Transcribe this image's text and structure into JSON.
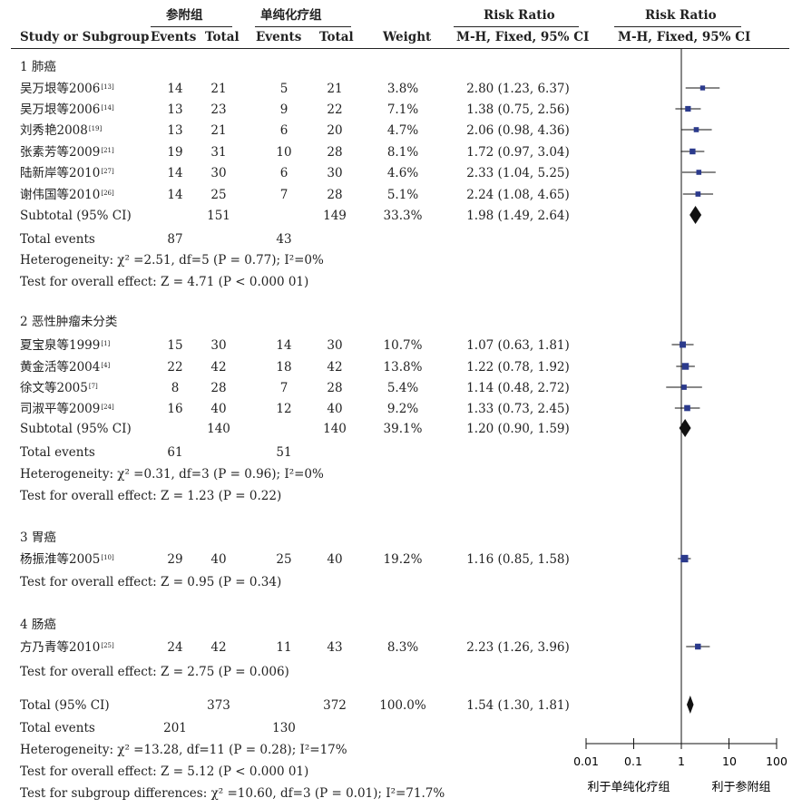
{
  "header": {
    "group1": "参附组",
    "group2": "单纯化疗组",
    "rr_title": "Risk Ratio",
    "plot_title": "Risk Ratio",
    "study_col": "Study or Subgroup",
    "events": "Events",
    "total": "Total",
    "weight": "Weight",
    "method": "M-H, Fixed, 95% CI",
    "plot_method": "M-H, Fixed, 95% CI"
  },
  "subgroups": [
    {
      "title": "1 肺癌",
      "studies": [
        {
          "name": "吴万垠等2006",
          "ref": "[13]",
          "e1": "14",
          "t1": "21",
          "e2": "5",
          "t2": "21",
          "weight": "3.8%",
          "ci": "2.80 (1.23, 6.37)"
        },
        {
          "name": "吴万垠等2006",
          "ref": "[14]",
          "e1": "13",
          "t1": "23",
          "e2": "9",
          "t2": "22",
          "weight": "7.1%",
          "ci": "1.38 (0.75, 2.56)"
        },
        {
          "name": "刘秀艳2008",
          "ref": "[19]",
          "e1": "13",
          "t1": "21",
          "e2": "6",
          "t2": "20",
          "weight": "4.7%",
          "ci": "2.06 (0.98, 4.36)"
        },
        {
          "name": "张素芳等2009",
          "ref": "[21]",
          "e1": "19",
          "t1": "31",
          "e2": "10",
          "t2": "28",
          "weight": "8.1%",
          "ci": "1.72 (0.97, 3.04)"
        },
        {
          "name": "陆新岸等2010",
          "ref": "[27]",
          "e1": "14",
          "t1": "30",
          "e2": "6",
          "t2": "30",
          "weight": "4.6%",
          "ci": "2.33 (1.04, 5.25)"
        },
        {
          "name": "谢伟国等2010",
          "ref": "[26]",
          "e1": "14",
          "t1": "25",
          "e2": "7",
          "t2": "28",
          "weight": "5.1%",
          "ci": "2.24 (1.08, 4.65)"
        }
      ],
      "subtotal": {
        "label": "Subtotal (95% CI)",
        "t1": "151",
        "t2": "149",
        "weight": "33.3%",
        "ci": "1.98 (1.49, 2.64)"
      },
      "total_events": {
        "label": "Total events",
        "e1": "87",
        "e2": "43"
      },
      "heterogeneity": "Heterogeneity:  χ² =2.51, df=5 (P = 0.77); I²=0%",
      "overall": "Test for overall effect: Z = 4.71 (P < 0.000 01)"
    },
    {
      "title": "2 恶性肿瘤未分类",
      "studies": [
        {
          "name": "夏宝泉等1999",
          "ref": "[1]",
          "e1": "15",
          "t1": "30",
          "e2": "14",
          "t2": "30",
          "weight": "10.7%",
          "ci": "1.07 (0.63, 1.81)"
        },
        {
          "name": "黄金活等2004",
          "ref": "[4]",
          "e1": "22",
          "t1": "42",
          "e2": "18",
          "t2": "42",
          "weight": "13.8%",
          "ci": "1.22 (0.78, 1.92)"
        },
        {
          "name": "徐文等2005",
          "ref": "[7]",
          "e1": "8",
          "t1": "28",
          "e2": "7",
          "t2": "28",
          "weight": "5.4%",
          "ci": "1.14 (0.48, 2.72)"
        },
        {
          "name": "司淑平等2009",
          "ref": "[24]",
          "e1": "16",
          "t1": "40",
          "e2": "12",
          "t2": "40",
          "weight": "9.2%",
          "ci": "1.33 (0.73, 2.45)"
        }
      ],
      "subtotal": {
        "label": "Subtotal (95% CI)",
        "t1": "140",
        "t2": "140",
        "weight": "39.1%",
        "ci": "1.20 (0.90, 1.59)"
      },
      "total_events": {
        "label": "Total events",
        "e1": "61",
        "e2": "51"
      },
      "heterogeneity": "Heterogeneity:  χ² =0.31, df=3 (P = 0.96); I²=0%",
      "overall": "Test for overall effect: Z = 1.23 (P = 0.22)"
    },
    {
      "title": "3 胃癌",
      "studies": [
        {
          "name": "杨振淮等2005",
          "ref": "[10]",
          "e1": "29",
          "t1": "40",
          "e2": "25",
          "t2": "40",
          "weight": "19.2%",
          "ci": "1.16 (0.85, 1.58)"
        }
      ],
      "overall": "Test for overall effect: Z = 0.95 (P = 0.34)"
    },
    {
      "title": "4 肠癌",
      "studies": [
        {
          "name": "方乃青等2010",
          "ref": "[25]",
          "e1": "24",
          "t1": "42",
          "e2": "11",
          "t2": "43",
          "weight": "8.3%",
          "ci": "2.23 (1.26, 3.96)"
        }
      ],
      "overall": "Test for overall effect: Z = 2.75 (P = 0.006)"
    }
  ],
  "total": {
    "label": "Total (95% CI)",
    "t1": "373",
    "t2": "372",
    "weight": "100.0%",
    "ci": "1.54 (1.30, 1.81)"
  },
  "total_events": {
    "label": "Total events",
    "e1": "201",
    "e2": "130"
  },
  "heterogeneity": "Heterogeneity:   χ² =13.28, df=11 (P = 0.28); I²=17%",
  "overall": "Test for overall effect: Z = 5.12 (P < 0.000 01)",
  "subgroup_diff": "Test for subgroup differences:   χ² =10.60, df=3 (P = 0.01); I²=71.7%",
  "axis": {
    "ticks": [
      "0.01",
      "0.1",
      "1",
      "10",
      "100"
    ],
    "favours_left": "利于单纯化疗组",
    "favours_right": "利于参附组"
  },
  "colors": {
    "square": "#2b3a8c",
    "line": "#111111",
    "diamond": "#111111"
  },
  "chart_data": {
    "type": "forest",
    "scale": "log",
    "xlim": [
      0.01,
      100
    ],
    "null_value": 1,
    "studies": [
      {
        "name": "吴万垠等2006 [13]",
        "rr": 2.8,
        "lo": 1.23,
        "hi": 6.37,
        "weight": 3.8
      },
      {
        "name": "吴万垠等2006 [14]",
        "rr": 1.38,
        "lo": 0.75,
        "hi": 2.56,
        "weight": 7.1
      },
      {
        "name": "刘秀艳2008",
        "rr": 2.06,
        "lo": 0.98,
        "hi": 4.36,
        "weight": 4.7
      },
      {
        "name": "张素芳等2009",
        "rr": 1.72,
        "lo": 0.97,
        "hi": 3.04,
        "weight": 8.1
      },
      {
        "name": "陆新岸等2010",
        "rr": 2.33,
        "lo": 1.04,
        "hi": 5.25,
        "weight": 4.6
      },
      {
        "name": "谢伟国等2010",
        "rr": 2.24,
        "lo": 1.08,
        "hi": 4.65,
        "weight": 5.1
      },
      {
        "name": "夏宝泉等1999",
        "rr": 1.07,
        "lo": 0.63,
        "hi": 1.81,
        "weight": 10.7
      },
      {
        "name": "黄金活等2004",
        "rr": 1.22,
        "lo": 0.78,
        "hi": 1.92,
        "weight": 13.8
      },
      {
        "name": "徐文等2005",
        "rr": 1.14,
        "lo": 0.48,
        "hi": 2.72,
        "weight": 5.4
      },
      {
        "name": "司淑平等2009",
        "rr": 1.33,
        "lo": 0.73,
        "hi": 2.45,
        "weight": 9.2
      },
      {
        "name": "杨振淮等2005",
        "rr": 1.16,
        "lo": 0.85,
        "hi": 1.58,
        "weight": 19.2
      },
      {
        "name": "方乃青等2010",
        "rr": 2.23,
        "lo": 1.26,
        "hi": 3.96,
        "weight": 8.3
      }
    ],
    "diamonds": [
      {
        "name": "Subtotal 1 肺癌",
        "rr": 1.98,
        "lo": 1.49,
        "hi": 2.64
      },
      {
        "name": "Subtotal 2 恶性肿瘤未分类",
        "rr": 1.2,
        "lo": 0.9,
        "hi": 1.59
      },
      {
        "name": "Total",
        "rr": 1.54,
        "lo": 1.3,
        "hi": 1.81
      }
    ]
  }
}
